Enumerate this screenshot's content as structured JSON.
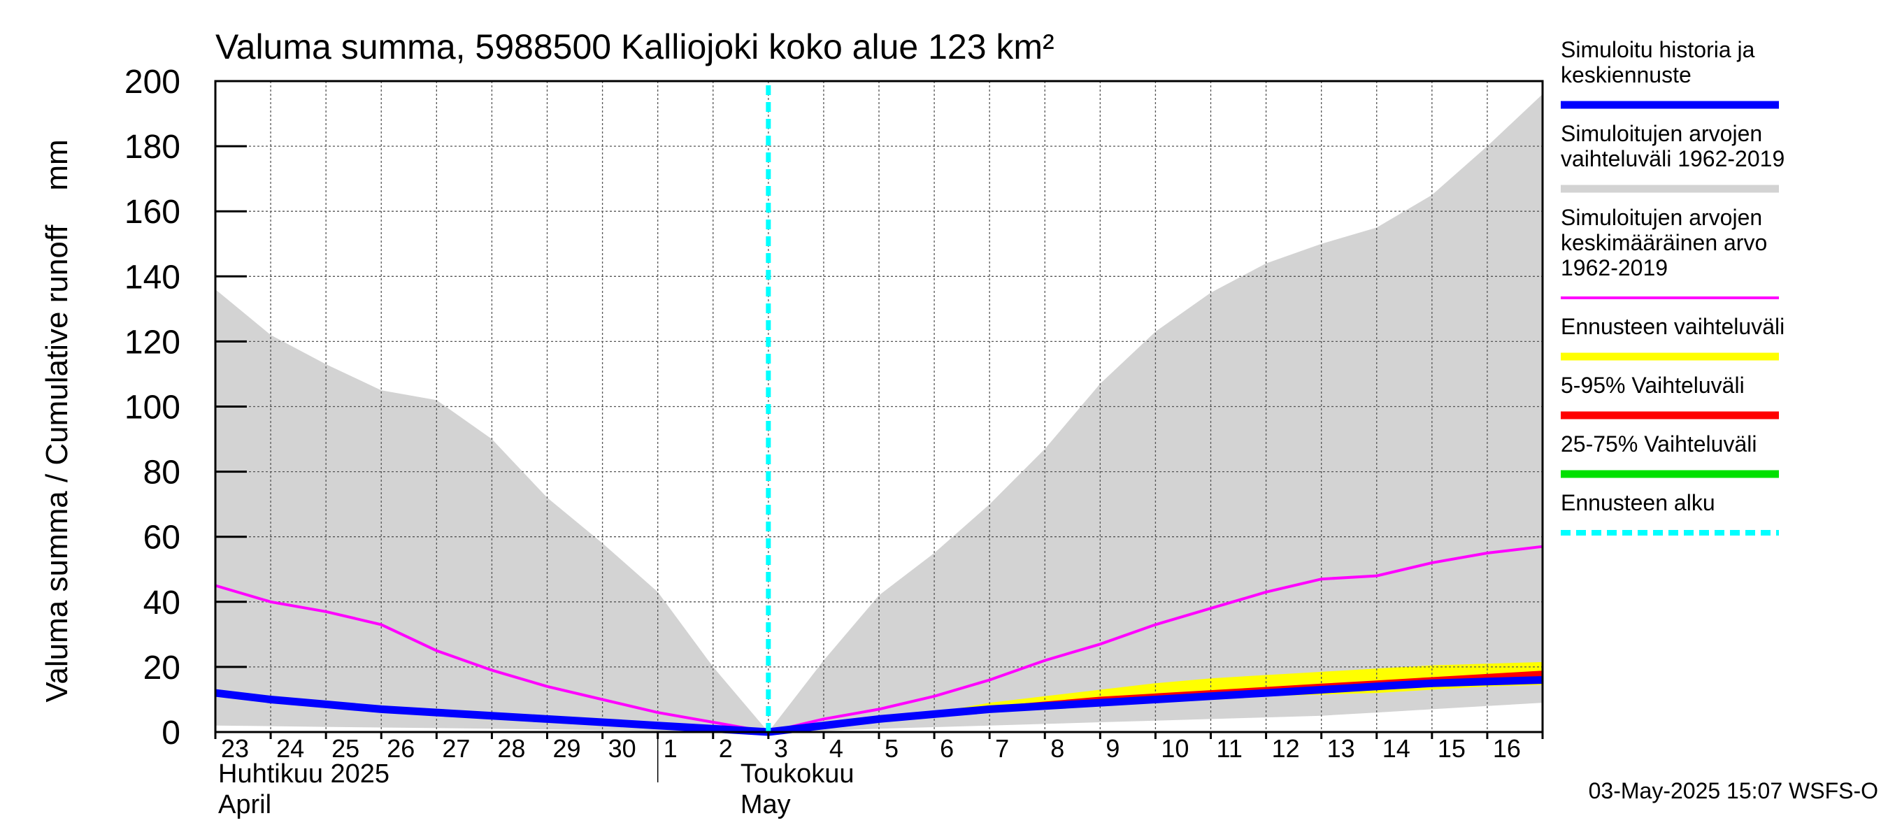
{
  "chart_data": {
    "type": "area",
    "title": "Valuma summa, 5988500 Kalliojoki koko alue 123 km²",
    "ylabel": "Valuma summa / Cumulative runoff    mm",
    "ylim": [
      0,
      200
    ],
    "yticks": [
      "0",
      "20",
      "40",
      "60",
      "80",
      "100",
      "120",
      "140",
      "160",
      "180",
      "200"
    ],
    "day_labels": [
      "23",
      "24",
      "25",
      "26",
      "27",
      "28",
      "29",
      "30",
      "1",
      "2",
      "3",
      "4",
      "5",
      "6",
      "7",
      "8",
      "9",
      "10",
      "11",
      "12",
      "13",
      "14",
      "15",
      "16"
    ],
    "day_index": [
      -10,
      -9,
      -8,
      -7,
      -6,
      -5,
      -4,
      -3,
      -2,
      -1,
      0,
      1,
      2,
      3,
      4,
      5,
      6,
      7,
      8,
      9,
      10,
      11,
      12,
      13,
      14
    ],
    "x_range_days": [
      -10,
      14
    ],
    "months": [
      {
        "name": "Huhtikuu  2025",
        "name_en": "April"
      },
      {
        "name": "Toukokuu",
        "name_en": "May"
      }
    ],
    "forecast_start_day": 0,
    "series": [
      {
        "name": "Simuloitujen arvojen vaihteluväli 1962-2019 (max)",
        "color": "#d3d3d3",
        "values": [
          136,
          122,
          113,
          105,
          102,
          90,
          72,
          58,
          43,
          20,
          0,
          22,
          42,
          55,
          70,
          87,
          107,
          123,
          135,
          144,
          150,
          155,
          165,
          180,
          196
        ]
      },
      {
        "name": "Simuloitujen arvojen vaihteluväli 1962-2019 (min)",
        "color": "#d3d3d3",
        "values": [
          2,
          1.8,
          1.6,
          1.4,
          1.2,
          1,
          0.8,
          0.6,
          0.4,
          0.2,
          0,
          0.4,
          1,
          1.5,
          2,
          2.5,
          3,
          3.5,
          4,
          4.5,
          5,
          6,
          7,
          8,
          9
        ]
      },
      {
        "name": "Simuloitujen arvojen keskimääräinen arvo 1962-2019",
        "color": "#ff00ff",
        "values": [
          45,
          40,
          37,
          33,
          25,
          19,
          14,
          10,
          6,
          3,
          0,
          4,
          7,
          11,
          16,
          22,
          27,
          33,
          38,
          43,
          47,
          48,
          52,
          55,
          57
        ]
      },
      {
        "name": "Ennusteen vaihteluväli (max)",
        "color": "#ffff00",
        "values": [
          null,
          null,
          null,
          null,
          null,
          null,
          null,
          null,
          null,
          null,
          0,
          2,
          4,
          6,
          9,
          11,
          13,
          15,
          16.5,
          17.5,
          18.5,
          19.5,
          20.5,
          21,
          21.5
        ]
      },
      {
        "name": "Ennusteen vaihteluväli (min)",
        "color": "#ffff00",
        "values": [
          null,
          null,
          null,
          null,
          null,
          null,
          null,
          null,
          null,
          null,
          0,
          1.5,
          3,
          4.5,
          6,
          7.5,
          8.5,
          9.5,
          10.5,
          11,
          11.5,
          12,
          13,
          14,
          14.5
        ]
      },
      {
        "name": "5-95% Vaihteluväli",
        "color": "#ff0000",
        "values": [
          null,
          null,
          null,
          null,
          null,
          null,
          null,
          null,
          null,
          null,
          0,
          2,
          4,
          5.5,
          7,
          8.5,
          10,
          11,
          12,
          13,
          14,
          15,
          16,
          17,
          18
        ]
      },
      {
        "name": "25-75% Vaihteluväli",
        "color": "#00c000",
        "values": [
          null,
          null,
          null,
          null,
          null,
          null,
          null,
          null,
          null,
          null,
          0,
          2,
          4,
          5.5,
          7,
          8,
          9.5,
          10.5,
          11.5,
          12.5,
          13.5,
          14.5,
          15.5,
          16,
          16.5
        ]
      },
      {
        "name": "Simuloitu historia ja keskiennuste",
        "color": "#0000ff",
        "values": [
          12,
          10,
          8.5,
          7,
          6,
          5,
          4,
          3,
          2,
          1,
          0,
          2,
          4,
          5.5,
          7,
          8,
          9,
          10,
          11,
          12,
          13,
          14,
          15,
          15.5,
          16
        ]
      }
    ],
    "legend": [
      {
        "lines": [
          "Simuloitu historia ja",
          "keskiennuste"
        ],
        "color": "#0000ff",
        "style": "solid"
      },
      {
        "lines": [
          "Simuloitujen arvojen",
          "vaihteluväli 1962-2019"
        ],
        "color": "#d3d3d3",
        "style": "solid"
      },
      {
        "lines": [
          "Simuloitujen arvojen",
          "keskimääräinen arvo",
          "   1962-2019"
        ],
        "color": "#ff00ff",
        "style": "thin"
      },
      {
        "lines": [
          "Ennusteen vaihteluväli"
        ],
        "color": "#ffff00",
        "style": "solid"
      },
      {
        "lines": [
          "5-95% Vaihteluväli"
        ],
        "color": "#ff0000",
        "style": "solid"
      },
      {
        "lines": [
          "25-75% Vaihteluväli"
        ],
        "color": "#00e000",
        "style": "solid"
      },
      {
        "lines": [
          "Ennusteen alku"
        ],
        "color": "#00ffff",
        "style": "dashed"
      }
    ],
    "footer": "03-May-2025 15:07 WSFS-O"
  }
}
